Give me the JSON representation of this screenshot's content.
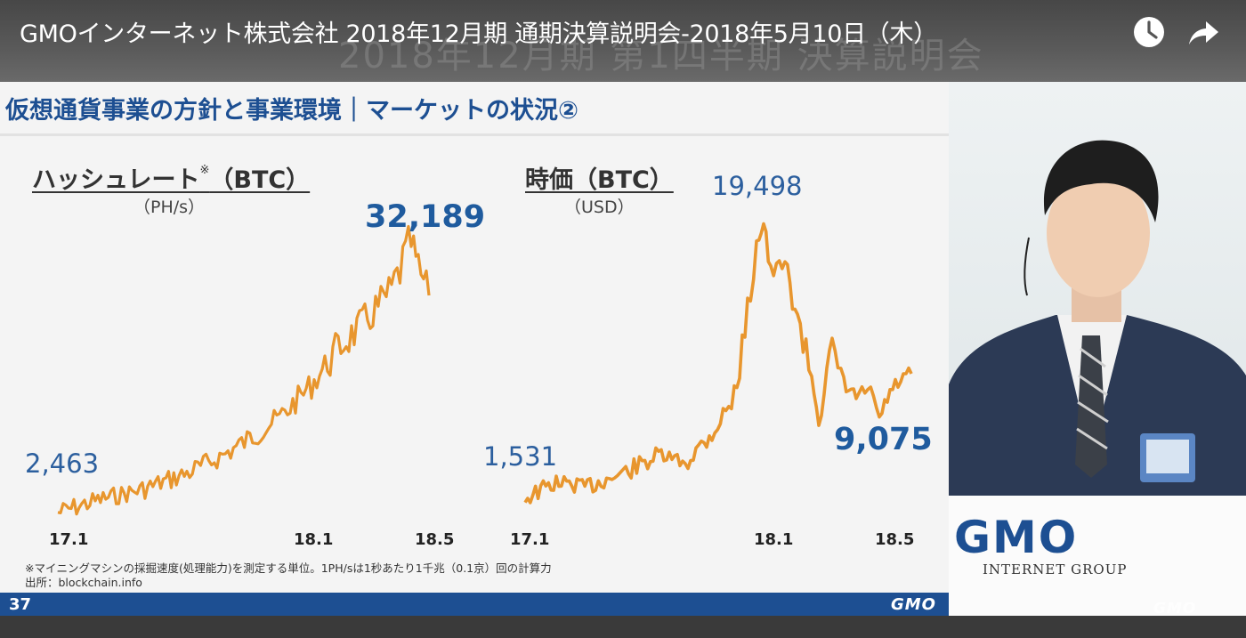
{
  "video": {
    "title": "GMOインターネット株式会社 2018年12月期 通期決算説明会-2018年5月10日（木）",
    "background_text": "2018年12月期 第1四半期 決算説明会",
    "watch_later_icon": "clock-icon",
    "share_icon": "share-arrow-icon",
    "watermark": "GMO"
  },
  "slide": {
    "title": "仮想通貨事業の方針と事業環境｜マーケットの状況②",
    "page_number": "37",
    "footer_logo": "GMO",
    "note": "※マイニングマシンの採掘速度(処理能力)を測定する単位。1PH/sは1秒あたり1千兆（0.1京）回の計算力",
    "source": "出所：blockchain.info",
    "accent_color": "#1d4f92",
    "line_color": "#e8962e"
  },
  "charts": [
    {
      "title": "ハッシュレート",
      "title_mark": "※",
      "title_suffix": "（BTC）",
      "unit": "（PH/s）",
      "start_label": "2,463",
      "peak_label": "32,189",
      "ticks": [
        "17.1",
        "18.1",
        "18.5"
      ]
    },
    {
      "title": "時価（BTC）",
      "unit": "（USD）",
      "start_label": "1,531",
      "peak_label": "19,498",
      "end_label": "9,075",
      "ticks": [
        "17.1",
        "18.1",
        "18.5"
      ]
    }
  ],
  "lectern": {
    "logo": "GMO",
    "subtitle": "INTERNET GROUP"
  }
}
